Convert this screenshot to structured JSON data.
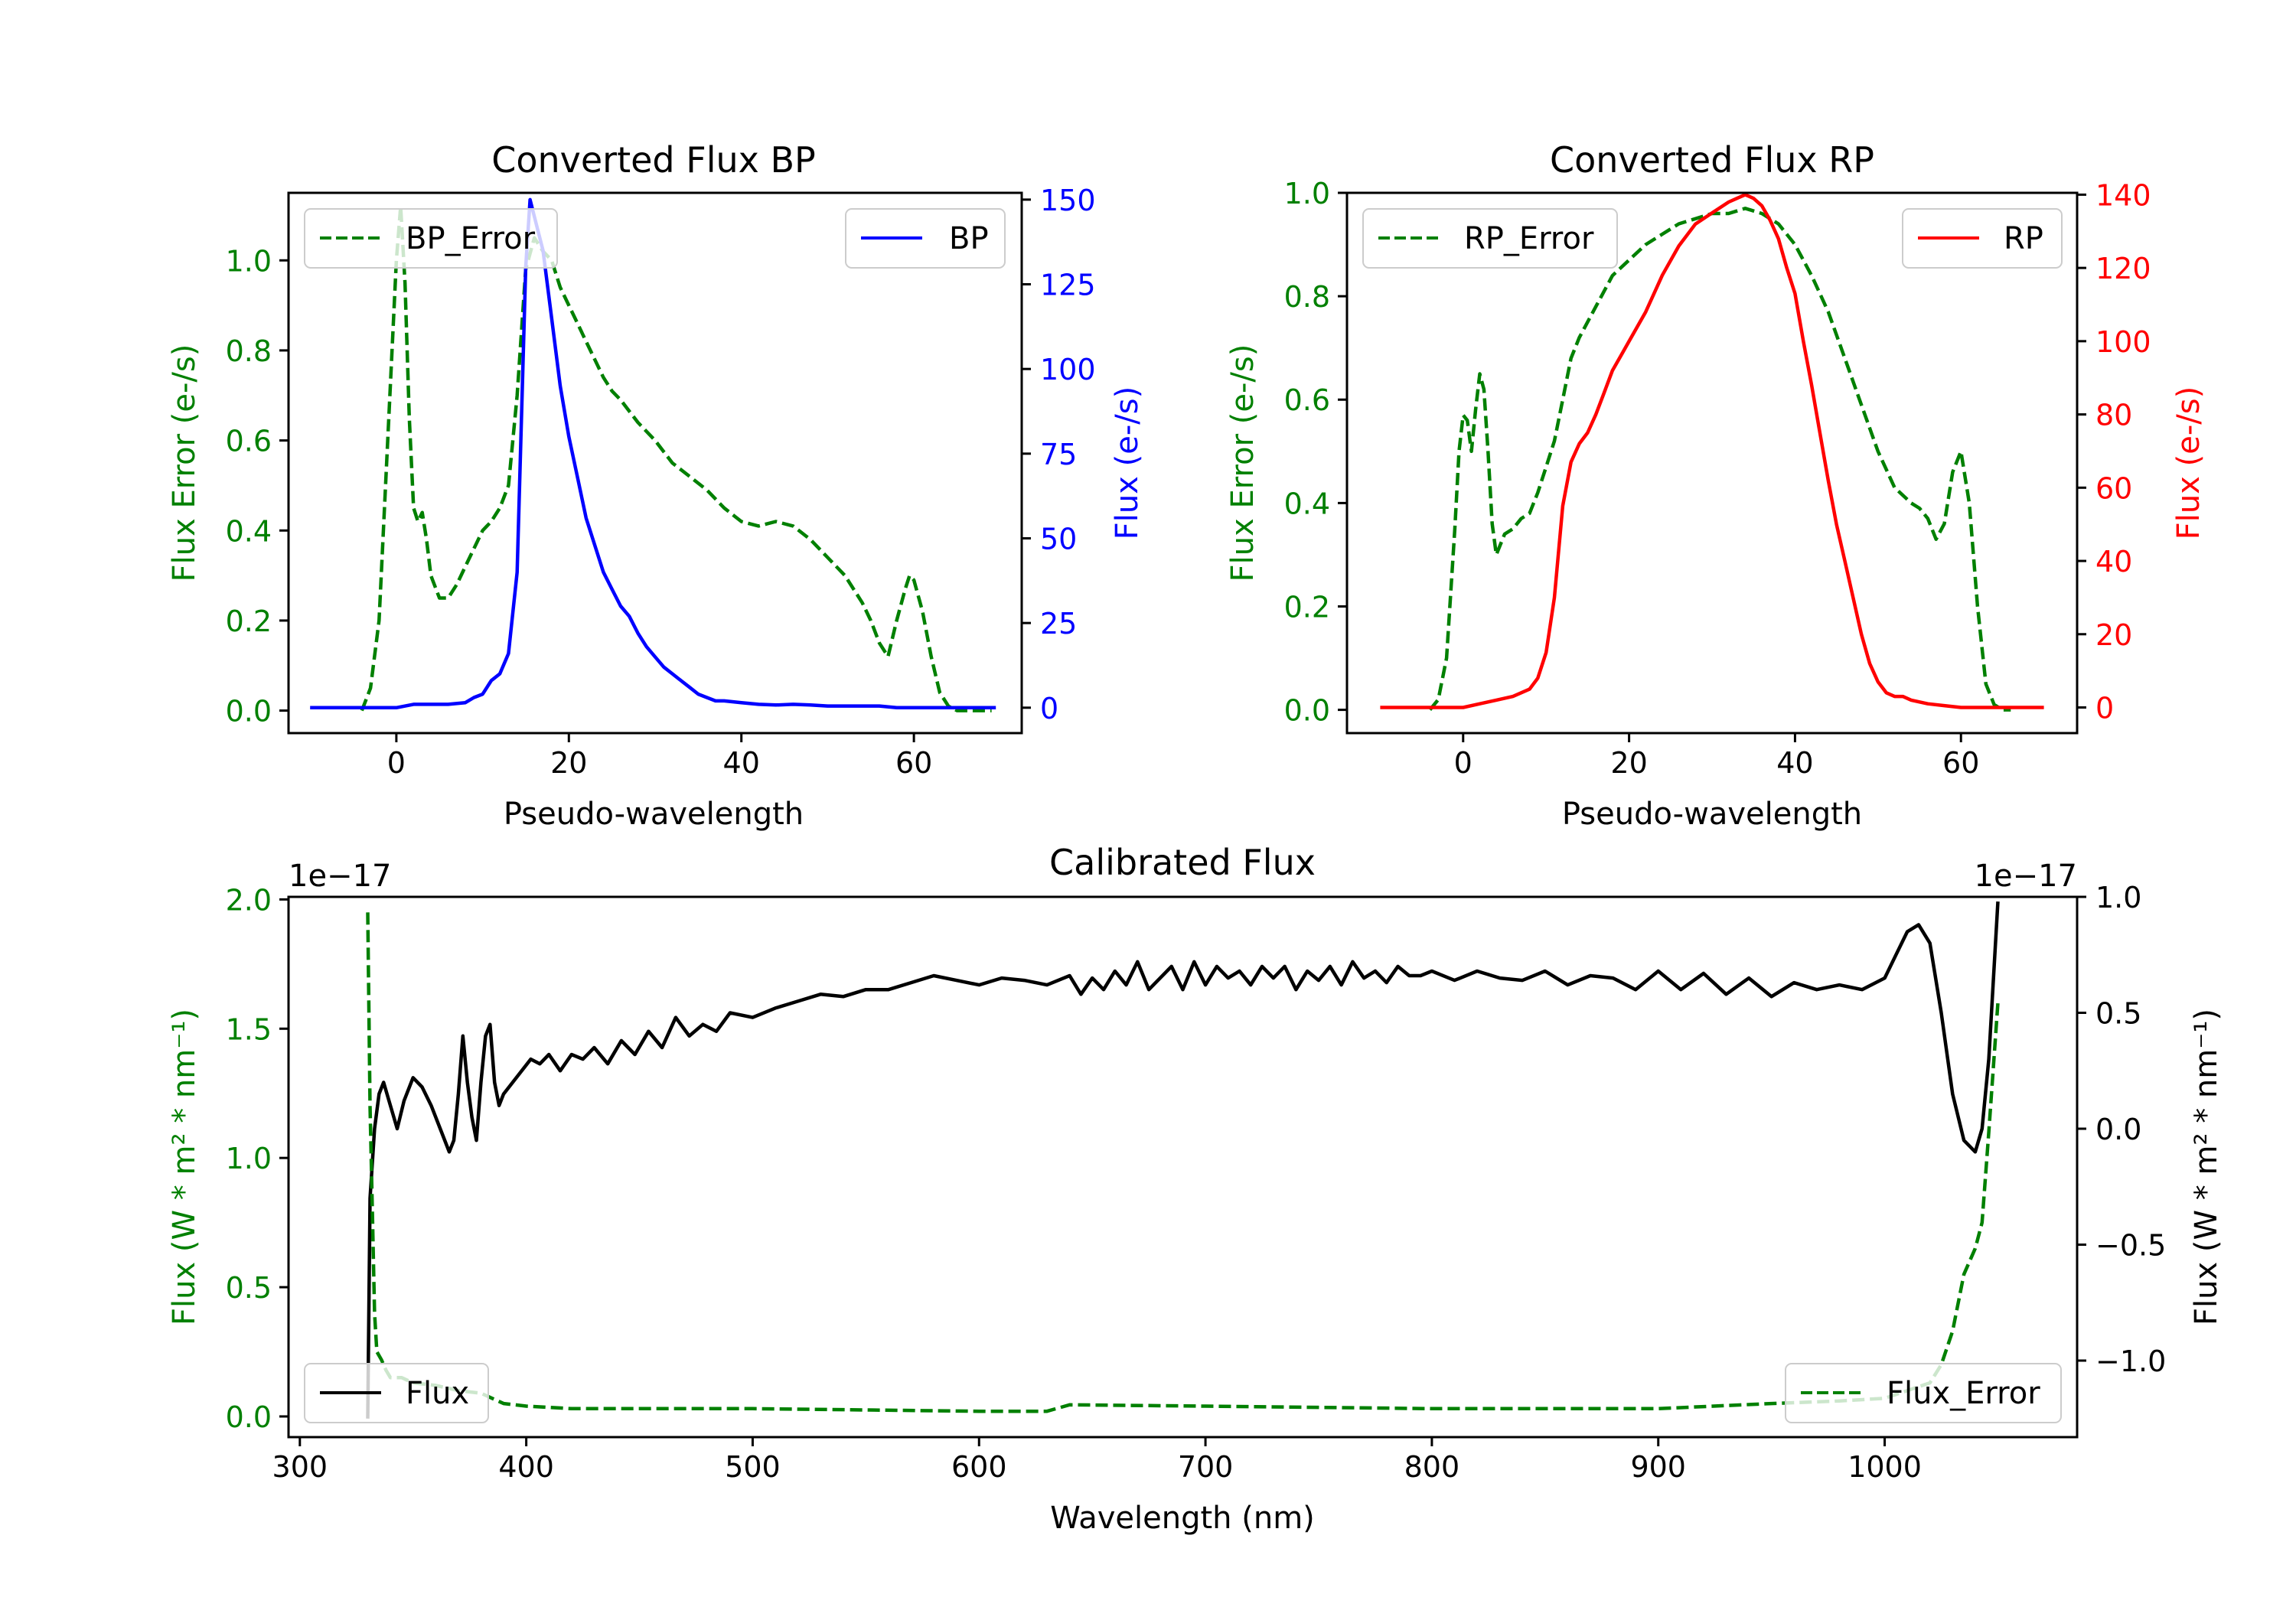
{
  "colors": {
    "green": "#008000",
    "blue": "#0000ff",
    "red": "#ff0000",
    "black": "#000000"
  },
  "chart_data": [
    {
      "id": "bp",
      "type": "line",
      "title": "Converted Flux BP",
      "xlabel": "Pseudo-wavelength",
      "ylabel_left": "Flux Error (e-/s)",
      "ylabel_right": "Flux (e-/s)",
      "xlim": [
        -12.5,
        72.5
      ],
      "ylim_left": [
        -0.05,
        1.15
      ],
      "ylim_right": [
        -7.5,
        152
      ],
      "xticks": [
        0,
        20,
        40,
        60
      ],
      "xtick_labels": [
        "0",
        "20",
        "40",
        "60"
      ],
      "yticks_left": [
        0.0,
        0.2,
        0.4,
        0.6,
        0.8,
        1.0
      ],
      "ytick_labels_left": [
        "0.0",
        "0.2",
        "0.4",
        "0.6",
        "0.8",
        "1.0"
      ],
      "yticks_right": [
        0,
        25,
        50,
        75,
        100,
        125,
        150
      ],
      "ytick_labels_right": [
        "0",
        "25",
        "50",
        "75",
        "100",
        "125",
        "150"
      ],
      "legend_left": {
        "label": "BP_Error",
        "position": "upper left"
      },
      "legend_right": {
        "label": "BP",
        "position": "upper right"
      },
      "series": [
        {
          "name": "BP_Error",
          "axis": "left",
          "style": "dashed",
          "color": "#008000",
          "x": [
            -4,
            -3,
            -2,
            -1,
            0,
            0.5,
            1,
            1.5,
            2,
            2.5,
            3,
            3.5,
            4,
            5,
            6,
            7,
            8,
            9,
            10,
            11,
            12,
            13,
            14,
            15,
            16,
            17,
            18,
            19,
            20,
            21,
            22,
            23,
            24,
            25,
            26,
            28,
            30,
            32,
            34,
            36,
            38,
            40,
            42,
            44,
            46,
            48,
            50,
            52,
            54,
            55,
            56,
            57,
            58,
            59,
            59.5,
            60,
            61,
            62,
            63,
            64,
            65,
            66,
            68,
            69
          ],
          "y": [
            0.0,
            0.05,
            0.2,
            0.6,
            1.0,
            1.12,
            0.95,
            0.65,
            0.45,
            0.42,
            0.44,
            0.38,
            0.3,
            0.25,
            0.25,
            0.28,
            0.32,
            0.36,
            0.4,
            0.42,
            0.45,
            0.5,
            0.7,
            0.98,
            1.05,
            1.02,
            1.0,
            0.94,
            0.9,
            0.86,
            0.82,
            0.78,
            0.74,
            0.71,
            0.69,
            0.64,
            0.6,
            0.55,
            0.52,
            0.49,
            0.45,
            0.42,
            0.41,
            0.42,
            0.41,
            0.38,
            0.34,
            0.3,
            0.24,
            0.2,
            0.15,
            0.12,
            0.2,
            0.27,
            0.3,
            0.29,
            0.22,
            0.12,
            0.04,
            0.01,
            0.0,
            0.0,
            0.0,
            0.0
          ]
        },
        {
          "name": "BP",
          "axis": "right",
          "style": "solid",
          "color": "#0000ff",
          "x": [
            -10,
            -5,
            0,
            2,
            4,
            6,
            8,
            9,
            10,
            11,
            12,
            13,
            14,
            15,
            15.5,
            16,
            17,
            18,
            19,
            20,
            21,
            22,
            23,
            24,
            25,
            26,
            27,
            28,
            29,
            30,
            31,
            32,
            33,
            34,
            35,
            36,
            37,
            38,
            40,
            42,
            44,
            46,
            48,
            50,
            52,
            54,
            56,
            58,
            60,
            62,
            64,
            66,
            68,
            69.5
          ],
          "y": [
            0,
            0,
            0,
            1,
            1,
            1,
            1.5,
            3,
            4,
            8,
            10,
            16,
            40,
            130,
            150,
            145,
            135,
            115,
            95,
            80,
            68,
            56,
            48,
            40,
            35,
            30,
            27,
            22,
            18,
            15,
            12,
            10,
            8,
            6,
            4,
            3,
            2,
            2,
            1.5,
            1,
            0.8,
            1,
            0.8,
            0.5,
            0.5,
            0.5,
            0.5,
            0,
            0,
            0,
            0,
            0,
            0,
            0
          ]
        }
      ]
    },
    {
      "id": "rp",
      "type": "line",
      "title": "Converted Flux RP",
      "xlabel": "Pseudo-wavelength",
      "ylabel_left": "Flux Error (e-/s)",
      "ylabel_right": "Flux (e-/s)",
      "xlim": [
        -14,
        74
      ],
      "ylim_left": [
        -0.045,
        1.0
      ],
      "ylim_right": [
        -7,
        140.5
      ],
      "xticks": [
        0,
        20,
        40,
        60
      ],
      "xtick_labels": [
        "0",
        "20",
        "40",
        "60"
      ],
      "yticks_left": [
        0.0,
        0.2,
        0.4,
        0.6,
        0.8,
        1.0
      ],
      "ytick_labels_left": [
        "0.0",
        "0.2",
        "0.4",
        "0.6",
        "0.8",
        "1.0"
      ],
      "yticks_right": [
        0,
        20,
        40,
        60,
        80,
        100,
        120,
        140
      ],
      "ytick_labels_right": [
        "0",
        "20",
        "40",
        "60",
        "80",
        "100",
        "120",
        "140"
      ],
      "legend_left": {
        "label": "RP_Error",
        "position": "upper left"
      },
      "legend_right": {
        "label": "RP",
        "position": "upper right"
      },
      "series": [
        {
          "name": "RP_Error",
          "axis": "left",
          "style": "dashed",
          "color": "#008000",
          "x": [
            -4,
            -3,
            -2,
            -1,
            -0.5,
            0,
            0.5,
            1,
            1.5,
            2,
            2.5,
            3,
            3.5,
            4,
            5,
            6,
            7,
            8,
            9,
            10,
            11,
            12,
            13,
            14,
            16,
            18,
            20,
            22,
            24,
            26,
            28,
            30,
            32,
            34,
            36,
            38,
            40,
            42,
            44,
            46,
            48,
            50,
            52,
            54,
            55,
            56,
            57,
            58,
            59,
            60,
            61,
            62,
            63,
            64,
            65,
            66
          ],
          "y": [
            0.0,
            0.02,
            0.1,
            0.35,
            0.5,
            0.57,
            0.56,
            0.5,
            0.58,
            0.65,
            0.62,
            0.5,
            0.36,
            0.3,
            0.34,
            0.35,
            0.37,
            0.38,
            0.42,
            0.47,
            0.52,
            0.6,
            0.68,
            0.72,
            0.78,
            0.84,
            0.87,
            0.9,
            0.92,
            0.94,
            0.95,
            0.96,
            0.96,
            0.97,
            0.96,
            0.94,
            0.9,
            0.84,
            0.77,
            0.68,
            0.59,
            0.5,
            0.43,
            0.4,
            0.39,
            0.37,
            0.33,
            0.36,
            0.46,
            0.5,
            0.4,
            0.2,
            0.05,
            0.01,
            0.0,
            0.0
          ],
          "y_note": "values approximate"
        },
        {
          "name": "RP",
          "axis": "right",
          "style": "solid",
          "color": "#ff0000",
          "x": [
            -10,
            -5,
            0,
            2,
            4,
            6,
            8,
            9,
            10,
            11,
            12,
            13,
            14,
            15,
            16,
            17,
            18,
            19,
            20,
            22,
            24,
            26,
            28,
            30,
            32,
            33,
            34,
            35,
            36,
            37,
            38,
            39,
            40,
            41,
            42,
            43,
            44,
            45,
            46,
            47,
            48,
            49,
            50,
            51,
            52,
            53,
            54,
            56,
            58,
            60,
            65,
            70
          ],
          "y": [
            0,
            0,
            0,
            1,
            2,
            3,
            5,
            8,
            15,
            30,
            55,
            67,
            72,
            75,
            80,
            86,
            92,
            96,
            100,
            108,
            118,
            126,
            132,
            135,
            138,
            139,
            140,
            139,
            137,
            133,
            128,
            120,
            113,
            100,
            88,
            75,
            62,
            50,
            40,
            30,
            20,
            12,
            7,
            4,
            3,
            3,
            2,
            1,
            0.5,
            0,
            0,
            0
          ]
        }
      ]
    },
    {
      "id": "cal",
      "type": "line",
      "title": "Calibrated Flux",
      "xlabel": "Wavelength (nm)",
      "ylabel_left": "Flux (W * m² * nm⁻¹)",
      "ylabel_right": "Flux (W * m² * nm⁻¹)",
      "offset_left": "1e−17",
      "offset_right": "1e−17",
      "xlim": [
        295,
        1085
      ],
      "ylim_left": [
        -0.08,
        2.01
      ],
      "ylim_right": [
        -1.33,
        1.0
      ],
      "xticks": [
        300,
        400,
        500,
        600,
        700,
        800,
        900,
        1000
      ],
      "xtick_labels": [
        "300",
        "400",
        "500",
        "600",
        "700",
        "800",
        "900",
        "1000"
      ],
      "yticks_left": [
        0.0,
        0.5,
        1.0,
        1.5,
        2.0
      ],
      "ytick_labels_left": [
        "0.0",
        "0.5",
        "1.0",
        "1.5",
        "2.0"
      ],
      "yticks_right": [
        -1.0,
        -0.5,
        0.0,
        0.5,
        1.0
      ],
      "ytick_labels_right": [
        "−1.0",
        "−0.5",
        "0.0",
        "0.5",
        "1.0"
      ],
      "legend_left": {
        "label": "Flux",
        "position": "lower left"
      },
      "legend_right": {
        "label": "Flux_Error",
        "position": "lower right"
      },
      "series": [
        {
          "name": "Flux",
          "axis": "right",
          "style": "solid",
          "color": "#000000",
          "x": [
            330,
            331,
            333,
            335,
            337,
            340,
            343,
            346,
            350,
            354,
            358,
            362,
            366,
            368,
            370,
            372,
            374,
            376,
            378,
            380,
            382,
            384,
            386,
            388,
            390,
            394,
            398,
            402,
            406,
            410,
            415,
            420,
            425,
            430,
            436,
            442,
            448,
            454,
            460,
            466,
            472,
            478,
            484,
            490,
            500,
            510,
            520,
            530,
            540,
            550,
            560,
            570,
            580,
            590,
            600,
            610,
            620,
            630,
            640,
            645,
            650,
            655,
            660,
            665,
            670,
            675,
            680,
            685,
            690,
            695,
            700,
            705,
            710,
            715,
            720,
            725,
            730,
            735,
            740,
            745,
            750,
            755,
            760,
            765,
            770,
            775,
            780,
            785,
            790,
            795,
            800,
            810,
            820,
            830,
            840,
            850,
            860,
            870,
            880,
            890,
            900,
            910,
            920,
            930,
            940,
            950,
            960,
            970,
            980,
            990,
            1000,
            1005,
            1010,
            1015,
            1020,
            1025,
            1030,
            1035,
            1040,
            1043,
            1046,
            1050
          ],
          "y": [
            -1.25,
            -0.3,
            0.0,
            0.15,
            0.2,
            0.1,
            0.0,
            0.12,
            0.22,
            0.18,
            0.1,
            0.0,
            -0.1,
            -0.05,
            0.15,
            0.4,
            0.2,
            0.05,
            -0.05,
            0.2,
            0.4,
            0.45,
            0.2,
            0.1,
            0.15,
            0.2,
            0.25,
            0.3,
            0.28,
            0.32,
            0.25,
            0.32,
            0.3,
            0.35,
            0.28,
            0.38,
            0.32,
            0.42,
            0.35,
            0.48,
            0.4,
            0.45,
            0.42,
            0.5,
            0.48,
            0.52,
            0.55,
            0.58,
            0.57,
            0.6,
            0.6,
            0.63,
            0.66,
            0.64,
            0.62,
            0.65,
            0.64,
            0.62,
            0.66,
            0.58,
            0.65,
            0.6,
            0.68,
            0.62,
            0.72,
            0.6,
            0.65,
            0.7,
            0.6,
            0.72,
            0.62,
            0.7,
            0.65,
            0.68,
            0.62,
            0.7,
            0.65,
            0.7,
            0.6,
            0.68,
            0.64,
            0.7,
            0.62,
            0.72,
            0.65,
            0.68,
            0.63,
            0.7,
            0.66,
            0.66,
            0.68,
            0.64,
            0.68,
            0.65,
            0.64,
            0.68,
            0.62,
            0.66,
            0.65,
            0.6,
            0.68,
            0.6,
            0.67,
            0.58,
            0.65,
            0.57,
            0.63,
            0.6,
            0.62,
            0.6,
            0.65,
            0.75,
            0.85,
            0.88,
            0.8,
            0.5,
            0.15,
            -0.05,
            -0.1,
            0.0,
            0.3,
            0.98
          ]
        },
        {
          "name": "Flux_Error",
          "axis": "left",
          "style": "dashed",
          "color": "#008000",
          "x": [
            330,
            331,
            332,
            333,
            334,
            336,
            338,
            340,
            345,
            350,
            360,
            370,
            380,
            390,
            400,
            420,
            450,
            500,
            550,
            600,
            630,
            640,
            700,
            800,
            900,
            950,
            980,
            1000,
            1010,
            1020,
            1025,
            1030,
            1035,
            1040,
            1043,
            1046,
            1050
          ],
          "y": [
            1.95,
            1.2,
            0.8,
            0.4,
            0.25,
            0.22,
            0.18,
            0.15,
            0.15,
            0.13,
            0.12,
            0.1,
            0.09,
            0.05,
            0.04,
            0.03,
            0.03,
            0.03,
            0.025,
            0.02,
            0.02,
            0.045,
            0.04,
            0.03,
            0.03,
            0.05,
            0.06,
            0.07,
            0.1,
            0.13,
            0.2,
            0.33,
            0.55,
            0.65,
            0.75,
            1.1,
            1.6
          ]
        }
      ]
    }
  ]
}
